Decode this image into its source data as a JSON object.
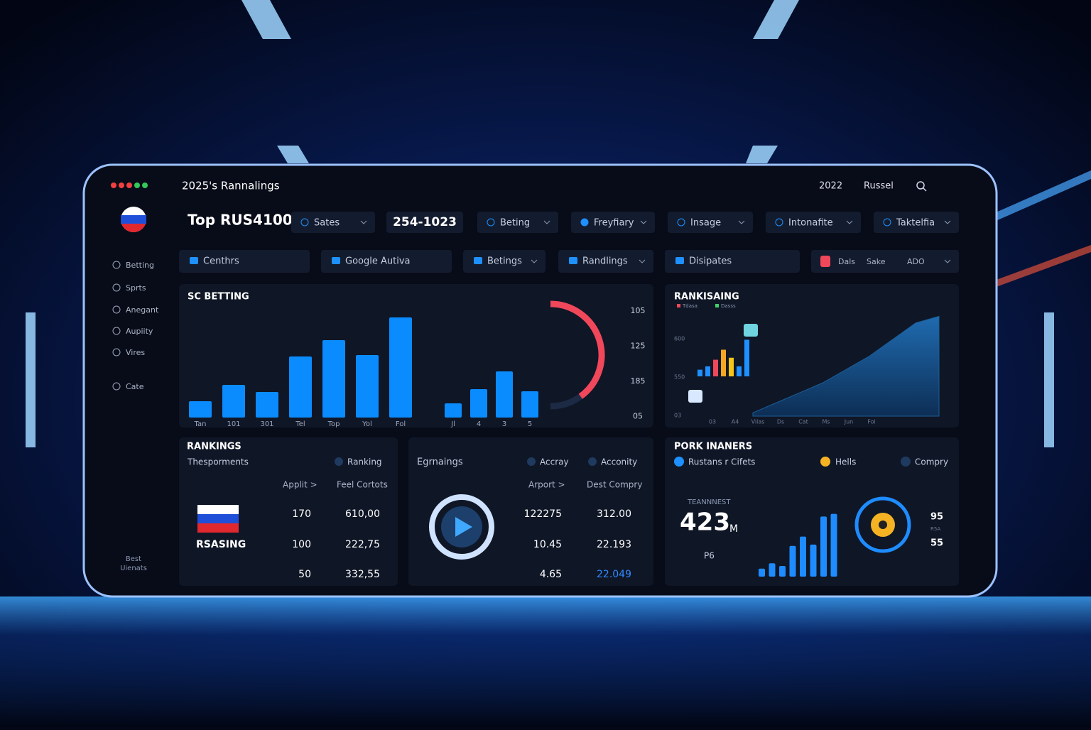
{
  "window": {
    "title": "2025's Rannalings",
    "year": "2022",
    "user": "Russel"
  },
  "sidebar": {
    "items": [
      "Betting",
      "Sprts",
      "Anegant",
      "Aupiity",
      "Vires",
      "Cate"
    ],
    "footer": [
      "Best",
      "Uienats"
    ]
  },
  "header": {
    "title": "Top RUS4100",
    "filters": [
      "Sates",
      "254-1023",
      "Beting",
      "Freyfiary",
      "Insage",
      "Intonafite",
      "Taktelfia"
    ]
  },
  "subnav": {
    "items": [
      "Centhrs",
      "Google Autiva",
      "Betings",
      "Randlings",
      "Disipates"
    ],
    "toggle": [
      "Dals",
      "Sake",
      "ADO"
    ]
  },
  "sc_betting": {
    "title": "SC BETTING",
    "ylim": [
      0,
      170
    ],
    "color": "#0a8cff",
    "groups": [
      {
        "categories": [
          "Tan",
          "101",
          "301",
          "Tel",
          "Top",
          "Yol",
          "Fol"
        ],
        "values": [
          23,
          46,
          36,
          86,
          109,
          88,
          141
        ]
      },
      {
        "categories": [
          "Jl",
          "4",
          "3",
          "5"
        ],
        "values": [
          20,
          40,
          65,
          37
        ]
      }
    ],
    "axis_labels": [
      "105",
      "125",
      "185",
      "05"
    ],
    "gauge": {
      "value": 40,
      "color": "#f0475a"
    }
  },
  "rankisaing": {
    "title": "RANKISAING",
    "legend": [
      {
        "name": "Tdasa",
        "color": "#f0475a"
      },
      {
        "name": "Dasss",
        "color": "#3fd06a"
      }
    ],
    "y_labels": [
      "600",
      "550",
      "03"
    ],
    "x_labels": [
      "03",
      "A4",
      "Vilas",
      "Ds",
      "Cat",
      "Ms",
      "Jun",
      "Fol"
    ],
    "ylim": [
      0,
      160
    ],
    "bars": {
      "values": [
        10,
        15,
        25,
        40,
        28,
        15,
        55
      ],
      "colors": [
        "#1e90ff",
        "#1e90ff",
        "#f0475a",
        "#f5a623",
        "#f5c518",
        "#1e90ff",
        "#1e90ff"
      ]
    },
    "area": {
      "values": [
        5,
        20,
        35,
        50,
        70,
        90,
        115,
        140,
        150
      ],
      "color": "#1c5d95"
    }
  },
  "rankings": {
    "title": "RANKINGS",
    "subtitle": "Thesporments",
    "filter": "Ranking",
    "columns": [
      "Applit >",
      "Feel Cortots"
    ],
    "brand": "RSASING",
    "rows": [
      [
        "170",
        "610,00"
      ],
      [
        "100",
        "222,75"
      ],
      [
        "50",
        "332,55"
      ]
    ]
  },
  "egrnaings": {
    "title": "Egrnaings",
    "filters": [
      "Accray",
      "Acconity"
    ],
    "columns": [
      "Arport >",
      "Dest Compry"
    ],
    "rows": [
      [
        "122275",
        "312.00"
      ],
      [
        "10.45",
        "22.193"
      ],
      [
        "4.65",
        "22.049"
      ]
    ]
  },
  "pork": {
    "title": "PORK INANERS",
    "legend": [
      {
        "name": "Rustans r Cifets",
        "color": "#1e90ff"
      },
      {
        "name": "Hells",
        "color": "#f5b323"
      },
      {
        "name": "Compry",
        "color": "#1f3a5f"
      }
    ],
    "stat_label": "TEANNNEST",
    "stat_value": "423",
    "stat_unit": "M",
    "stat_sub": "P6",
    "ylim": [
      0,
      100
    ],
    "bars": {
      "values": [
        12,
        20,
        16,
        46,
        60,
        48,
        90,
        94
      ],
      "color": "#1e8cff"
    },
    "ring_labels": [
      "95",
      "R5A",
      "55"
    ]
  }
}
